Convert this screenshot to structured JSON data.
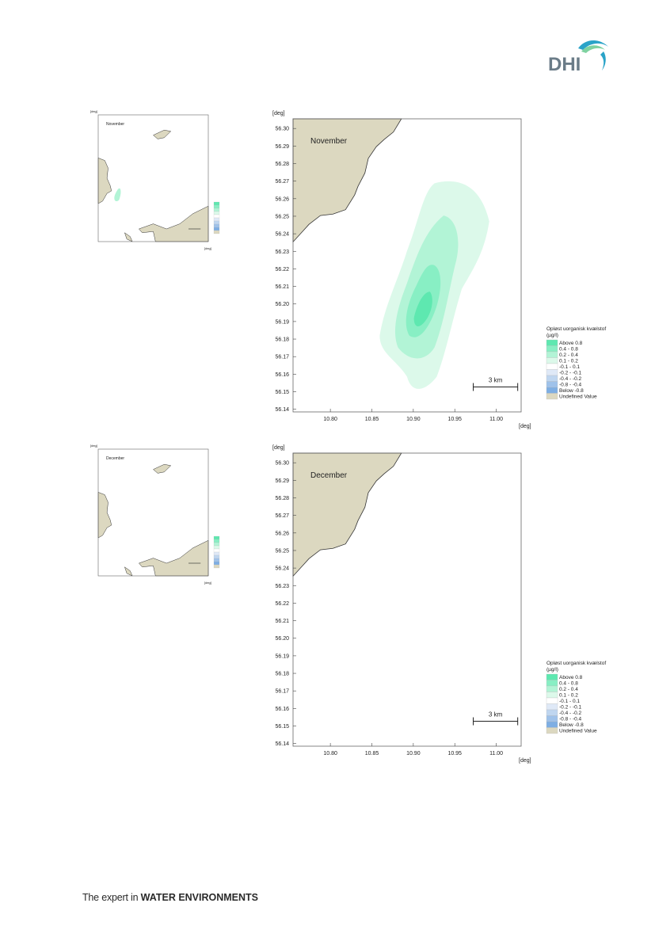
{
  "brand": {
    "logo_text": "DHI",
    "accent": "#2aa3c8",
    "accent2": "#7fd2a0"
  },
  "footer": {
    "prefix": "The expert in ",
    "bold": "WATER ENVIRONMENTS"
  },
  "legend": {
    "title_line1": "Opløst uorganisk kvælstof",
    "title_line2": "(µg/l)",
    "items": [
      {
        "label": "Above  0.8",
        "color": "#5ee8b0"
      },
      {
        "label": "0.4 -  0.8",
        "color": "#88efc4"
      },
      {
        "label": "0.2 -  0.4",
        "color": "#b2f4d6"
      },
      {
        "label": "0.1 -  0.2",
        "color": "#dcf9ea"
      },
      {
        "label": "-0.1 -  0.1",
        "color": "#ffffff"
      },
      {
        "label": "-0.2 - -0.1",
        "color": "#dfe9f7"
      },
      {
        "label": "-0.4 - -0.2",
        "color": "#bfd6f0"
      },
      {
        "label": "-0.8 - -0.4",
        "color": "#9fc2ea"
      },
      {
        "label": "Below -0.8",
        "color": "#7eaee3"
      },
      {
        "label": "Undefined Value",
        "color": "#dcd8c0"
      }
    ]
  },
  "axes": {
    "unit_label": "[deg]",
    "y_ticks": [
      "56.30",
      "56.29",
      "56.28",
      "56.27",
      "56.26",
      "56.25",
      "56.24",
      "56.23",
      "56.22",
      "56.21",
      "56.20",
      "56.19",
      "56.18",
      "56.17",
      "56.16",
      "56.15",
      "56.14"
    ],
    "x_ticks": [
      "10.80",
      "10.85",
      "10.90",
      "10.95",
      "11.00"
    ],
    "xlim": [
      10.755,
      11.03
    ],
    "ylim": [
      56.1385,
      56.3055
    ]
  },
  "scale_bar": {
    "label": "3 km"
  },
  "panels": [
    {
      "month": "November",
      "plume": true
    },
    {
      "month": "December",
      "plume": false
    }
  ],
  "colors": {
    "land": "#dcd8c0",
    "coast": "#333333",
    "frame": "#666666"
  }
}
